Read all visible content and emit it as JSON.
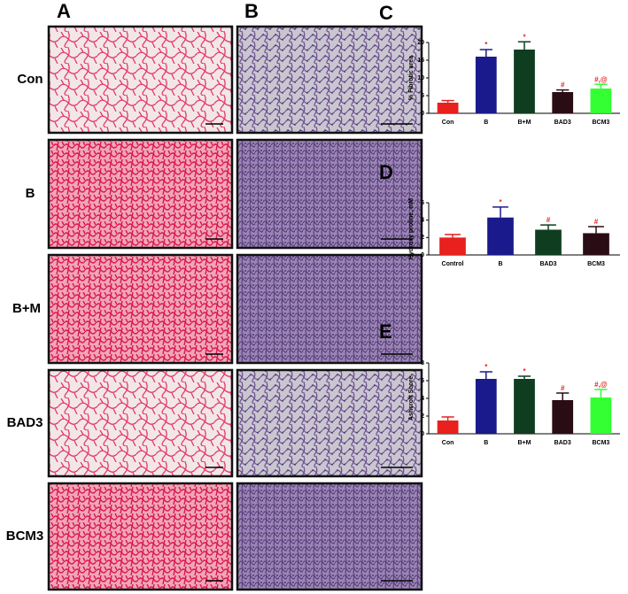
{
  "panels": {
    "A": "A",
    "B": "B",
    "C": "C",
    "D": "D",
    "E": "E"
  },
  "rows": [
    "Con",
    "B",
    "B+M",
    "BAD3",
    "BCM3"
  ],
  "chart_data": [
    {
      "type": "bar",
      "ylabel": "% Fibrotic area",
      "categories": [
        "Con",
        "B",
        "B+M",
        "BAD3",
        "BCM3"
      ],
      "values": [
        3,
        16,
        18,
        6,
        7
      ],
      "errors": [
        0.6,
        2,
        2.2,
        0.6,
        1.2
      ],
      "annotations": [
        null,
        "*",
        "*",
        "#",
        "#,@"
      ],
      "colors": [
        "#e8201e",
        "#1a1a8c",
        "#0f3d1f",
        "#2a0d14",
        "#33ff33"
      ],
      "ylim": [
        0,
        20
      ],
      "yticks": [
        0,
        5,
        10,
        15,
        20
      ]
    },
    {
      "type": "bar",
      "ylabel": "Hydroxy proline, mM",
      "categories": [
        "Control",
        "B",
        "BAD3",
        "BCM3"
      ],
      "values": [
        2.0,
        4.3,
        2.9,
        2.5
      ],
      "errors": [
        0.35,
        1.2,
        0.55,
        0.75
      ],
      "annotations": [
        null,
        "*",
        "#",
        "#"
      ],
      "colors": [
        "#e8201e",
        "#1a1a8c",
        "#0f3d1f",
        "#2a0d14"
      ],
      "ylim": [
        0,
        6
      ],
      "yticks": [
        0,
        2,
        4,
        6
      ]
    },
    {
      "type": "bar",
      "ylabel": "Ashcroft Score",
      "categories": [
        "Con",
        "B",
        "B+M",
        "BAD3",
        "BCM3"
      ],
      "values": [
        1.5,
        6.2,
        6.2,
        3.8,
        4.1
      ],
      "errors": [
        0.4,
        0.8,
        0.3,
        0.8,
        0.9
      ],
      "annotations": [
        null,
        "*",
        "*",
        "#",
        "#,@"
      ],
      "colors": [
        "#e8201e",
        "#1a1a8c",
        "#0f3d1f",
        "#2a0d14",
        "#33ff33"
      ],
      "ylim": [
        0,
        8
      ],
      "yticks": [
        0,
        2,
        4,
        6,
        8
      ]
    }
  ]
}
